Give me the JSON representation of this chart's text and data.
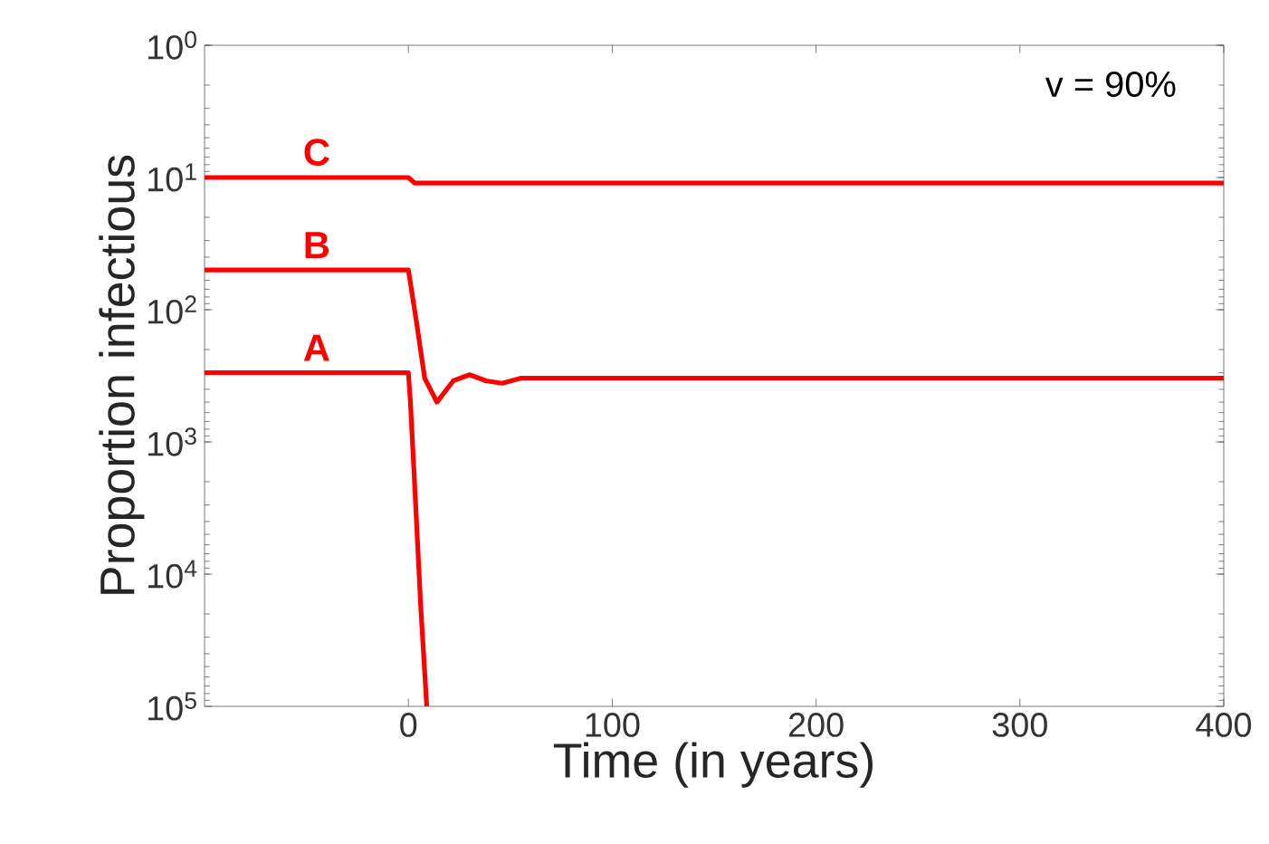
{
  "chart_data": {
    "type": "line",
    "xlabel": "Time (in years)",
    "ylabel": "Proportion infectious",
    "annotations": [
      "v = 90%"
    ],
    "log": "y",
    "xlim": [
      -100,
      400
    ],
    "xticks": [
      0,
      100,
      200,
      300,
      400
    ],
    "ylim": [
      100000,
      1
    ],
    "yticks": [
      {
        "value": 1,
        "label": "10$^{0}$"
      },
      {
        "value": 10,
        "label": "10$^{1}$"
      },
      {
        "value": 100,
        "label": "10$^{2}$"
      },
      {
        "value": 1000,
        "label": "10$^{3}$"
      },
      {
        "value": 10000,
        "label": "10$^{4}$"
      },
      {
        "value": 100000,
        "label": "10$^{5}$"
      }
    ],
    "grid": false,
    "legend": false,
    "series": [
      {
        "name": "C",
        "color": "#ff0000",
        "x": [
          -100,
          0,
          3,
          400
        ],
        "values": [
          10,
          10,
          11,
          11
        ]
      },
      {
        "name": "B",
        "color": "#ff0000",
        "x": [
          -100,
          0,
          4,
          8,
          14,
          22,
          30,
          38,
          46,
          55,
          400
        ],
        "values": [
          50,
          50,
          125,
          330,
          500,
          345,
          310,
          345,
          360,
          330,
          330
        ]
      },
      {
        "name": "A",
        "color": "#ff0000",
        "x": [
          -100,
          0,
          1,
          3,
          6,
          9
        ],
        "values": [
          300,
          300,
          500,
          2000,
          17000,
          100000
        ]
      }
    ]
  }
}
